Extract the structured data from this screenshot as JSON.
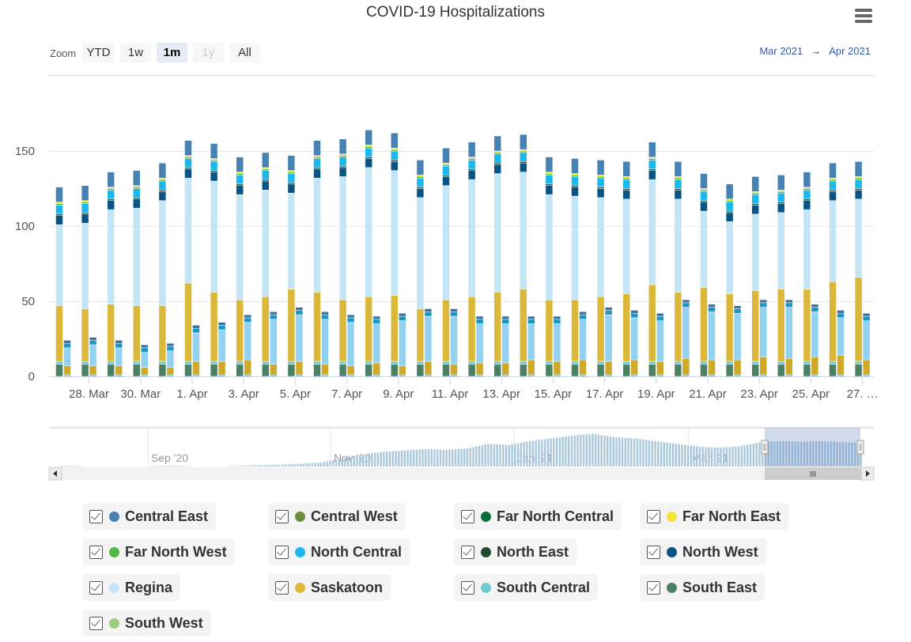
{
  "title": "COVID-19 Hospitalizations",
  "menu_icon": "hamburger-menu-icon",
  "range_selector": {
    "zoom_label": "Zoom",
    "buttons": [
      {
        "label": "YTD",
        "state": "normal"
      },
      {
        "label": "1w",
        "state": "normal"
      },
      {
        "label": "1m",
        "state": "active"
      },
      {
        "label": "1y",
        "state": "disabled"
      },
      {
        "label": "All",
        "state": "normal"
      }
    ],
    "from": "Mar 2021",
    "arrow": "→",
    "to": "Apr 2021"
  },
  "chart_data": {
    "type": "bar",
    "stacking": "normal",
    "stacks_per_category": 2,
    "categories": [
      "27. Mar",
      "28. Mar",
      "29. Mar",
      "30. Mar",
      "31. Mar",
      "1. Apr",
      "2. Apr",
      "3. Apr",
      "4. Apr",
      "5. Apr",
      "6. Apr",
      "7. Apr",
      "8. Apr",
      "9. Apr",
      "10. Apr",
      "11. Apr",
      "12. Apr",
      "13. Apr",
      "14. Apr",
      "15. Apr",
      "16. Apr",
      "17. Apr",
      "18. Apr",
      "19. Apr",
      "20. Apr",
      "21. Apr",
      "22. Apr",
      "23. Apr",
      "24. Apr",
      "25. Apr",
      "26. Apr",
      "27. Apr"
    ],
    "x_tick_labels": [
      "28. Mar",
      "30. Mar",
      "1. Apr",
      "3. Apr",
      "5. Apr",
      "7. Apr",
      "9. Apr",
      "11. Apr",
      "13. Apr",
      "15. Apr",
      "17. Apr",
      "19. Apr",
      "21. Apr",
      "23. Apr",
      "25. Apr",
      "27. …"
    ],
    "y_ticks": [
      0,
      50,
      100,
      150
    ],
    "ylim": [
      0,
      200
    ],
    "grid": true,
    "xlabel": "",
    "ylabel": "",
    "series": [
      {
        "name": "Central East",
        "color": "#4682b4",
        "color2": "#3f6f9c",
        "values": [
          10,
          10,
          10,
          10,
          10,
          10,
          10,
          10,
          10,
          10,
          10,
          10,
          10,
          10,
          10,
          10,
          10,
          10,
          10,
          10,
          10,
          10,
          10,
          10,
          10,
          10,
          10,
          10,
          10,
          10,
          10,
          10
        ],
        "values2": [
          2,
          2,
          2,
          2,
          2,
          2,
          2,
          2,
          2,
          2,
          2,
          2,
          2,
          2,
          2,
          2,
          2,
          2,
          2,
          2,
          2,
          2,
          2,
          2,
          2,
          2,
          2,
          2,
          2,
          2,
          2,
          2
        ]
      },
      {
        "name": "Central West",
        "color": "#6b8e3a",
        "color2": "#5f7f33",
        "values": [
          0,
          0,
          0,
          0,
          0,
          0,
          0,
          0,
          0,
          0,
          0,
          0,
          0,
          0,
          0,
          0,
          0,
          0,
          0,
          0,
          0,
          0,
          0,
          0,
          0,
          0,
          0,
          0,
          0,
          0,
          0,
          0
        ],
        "values2": [
          0,
          0,
          0,
          0,
          0,
          0,
          0,
          0,
          0,
          0,
          0,
          0,
          0,
          0,
          0,
          0,
          0,
          0,
          0,
          0,
          0,
          0,
          0,
          0,
          0,
          0,
          0,
          0,
          0,
          0,
          0,
          0
        ]
      },
      {
        "name": "Far North Central",
        "color": "#0b6e3b",
        "color2": "#0a5f33",
        "values": [
          0,
          0,
          0,
          0,
          0,
          0,
          0,
          0,
          0,
          0,
          0,
          0,
          0,
          0,
          0,
          0,
          0,
          0,
          0,
          0,
          0,
          0,
          0,
          0,
          0,
          0,
          0,
          0,
          0,
          0,
          0,
          0
        ],
        "values2": [
          0,
          0,
          0,
          0,
          0,
          0,
          0,
          0,
          0,
          0,
          0,
          0,
          0,
          0,
          0,
          0,
          0,
          0,
          0,
          0,
          0,
          0,
          0,
          0,
          0,
          0,
          0,
          0,
          0,
          0,
          0,
          0
        ]
      },
      {
        "name": "Far North East",
        "color": "#f5e236",
        "color2": "#d9c72e",
        "values": [
          1,
          1,
          1,
          1,
          1,
          1,
          1,
          1,
          1,
          1,
          1,
          1,
          1,
          1,
          1,
          1,
          1,
          1,
          1,
          1,
          1,
          1,
          1,
          1,
          1,
          1,
          1,
          1,
          1,
          1,
          1,
          1
        ],
        "values2": [
          0,
          0,
          0,
          0,
          0,
          0,
          0,
          0,
          0,
          0,
          0,
          0,
          0,
          0,
          0,
          0,
          0,
          0,
          0,
          0,
          0,
          0,
          0,
          0,
          0,
          0,
          0,
          0,
          0,
          0,
          0,
          0
        ]
      },
      {
        "name": "Far North West",
        "color": "#4fb84a",
        "color2": "#44a13f",
        "values": [
          1,
          1,
          1,
          1,
          1,
          1,
          1,
          1,
          1,
          1,
          1,
          1,
          1,
          1,
          1,
          1,
          1,
          1,
          1,
          1,
          1,
          1,
          1,
          1,
          1,
          1,
          1,
          1,
          1,
          1,
          1,
          1
        ],
        "values2": [
          0,
          0,
          0,
          0,
          0,
          0,
          0,
          0,
          0,
          0,
          0,
          0,
          0,
          0,
          0,
          0,
          0,
          0,
          0,
          0,
          0,
          0,
          0,
          0,
          0,
          0,
          0,
          0,
          0,
          0,
          0,
          0
        ]
      },
      {
        "name": "North Central",
        "color": "#1ab8ec",
        "color2": "#1a96c4",
        "values": [
          6,
          6,
          6,
          6,
          6,
          6,
          6,
          6,
          6,
          6,
          6,
          6,
          6,
          6,
          6,
          6,
          6,
          6,
          6,
          6,
          6,
          6,
          6,
          6,
          6,
          6,
          6,
          6,
          6,
          6,
          6,
          6
        ],
        "values2": [
          3,
          3,
          3,
          3,
          3,
          3,
          3,
          3,
          3,
          3,
          3,
          3,
          3,
          3,
          3,
          3,
          3,
          3,
          3,
          3,
          3,
          3,
          3,
          3,
          3,
          3,
          3,
          3,
          3,
          3,
          3,
          3
        ]
      },
      {
        "name": "North East",
        "color": "#1e4d30",
        "color2": "#0d2a3f",
        "values": [
          1,
          1,
          1,
          1,
          1,
          1,
          1,
          1,
          1,
          1,
          1,
          1,
          1,
          1,
          1,
          1,
          1,
          1,
          1,
          1,
          1,
          1,
          1,
          1,
          1,
          1,
          1,
          1,
          1,
          1,
          1,
          1
        ],
        "values2": [
          0,
          0,
          0,
          0,
          0,
          0,
          0,
          0,
          0,
          0,
          0,
          0,
          0,
          0,
          0,
          0,
          0,
          0,
          0,
          0,
          0,
          0,
          0,
          0,
          0,
          0,
          0,
          0,
          0,
          0,
          0,
          0
        ]
      },
      {
        "name": "North West",
        "color": "#0a5485",
        "color2": "#0a4a75",
        "values": [
          6,
          6,
          6,
          6,
          6,
          6,
          6,
          6,
          6,
          6,
          6,
          6,
          6,
          6,
          6,
          6,
          6,
          6,
          6,
          6,
          6,
          6,
          6,
          6,
          6,
          6,
          6,
          6,
          6,
          6,
          6,
          6
        ],
        "values2": [
          0,
          0,
          0,
          0,
          0,
          0,
          0,
          0,
          0,
          0,
          0,
          0,
          0,
          0,
          0,
          0,
          0,
          0,
          0,
          0,
          0,
          0,
          0,
          0,
          0,
          0,
          0,
          0,
          0,
          0,
          0,
          0
        ]
      },
      {
        "name": "Regina",
        "color": "#c3e5f6",
        "color2": "#92d1ef",
        "values": [
          54,
          57,
          63,
          65,
          70,
          70,
          74,
          70,
          71,
          64,
          76,
          82,
          86,
          83,
          74,
          76,
          78,
          79,
          78,
          70,
          69,
          66,
          63,
          70,
          62,
          51,
          48,
          51,
          51,
          53,
          54,
          52
        ],
        "values2": [
          12,
          14,
          12,
          10,
          11,
          19,
          21,
          25,
          30,
          31,
          30,
          29,
          26,
          30,
          30,
          32,
          26,
          26,
          24,
          25,
          27,
          31,
          28,
          27,
          34,
          32,
          31,
          33,
          34,
          30,
          25,
          26
        ]
      },
      {
        "name": "Saskatoon",
        "color": "#dcb83a",
        "color2": "#cfa92a",
        "values": [
          37,
          35,
          38,
          37,
          37,
          52,
          46,
          41,
          43,
          48,
          46,
          41,
          43,
          44,
          35,
          41,
          43,
          46,
          48,
          41,
          41,
          43,
          45,
          51,
          46,
          49,
          45,
          47,
          48,
          48,
          53,
          56
        ],
        "values2": [
          6,
          6,
          6,
          5,
          5,
          9,
          9,
          10,
          7,
          9,
          7,
          6,
          8,
          6,
          9,
          7,
          8,
          8,
          10,
          9,
          10,
          9,
          10,
          9,
          11,
          10,
          10,
          12,
          11,
          12,
          13,
          10
        ]
      },
      {
        "name": "South Central",
        "color": "#6fc9d0",
        "color2": "#5bc0c9",
        "values": [
          2,
          2,
          2,
          2,
          2,
          2,
          2,
          2,
          2,
          2,
          2,
          2,
          2,
          2,
          2,
          2,
          2,
          2,
          2,
          2,
          2,
          2,
          2,
          2,
          2,
          2,
          2,
          2,
          2,
          2,
          2,
          2
        ],
        "values2": [
          1,
          1,
          1,
          1,
          1,
          1,
          1,
          1,
          1,
          1,
          1,
          1,
          1,
          1,
          1,
          1,
          1,
          1,
          1,
          1,
          1,
          1,
          1,
          1,
          1,
          1,
          1,
          1,
          1,
          1,
          1,
          1
        ]
      },
      {
        "name": "South East",
        "color": "#4b8062",
        "color2": "#43735a",
        "values": [
          8,
          8,
          8,
          8,
          8,
          8,
          8,
          8,
          8,
          8,
          8,
          8,
          8,
          8,
          8,
          8,
          8,
          8,
          8,
          8,
          8,
          8,
          8,
          8,
          8,
          8,
          8,
          8,
          8,
          8,
          8,
          8
        ],
        "values2": [
          0,
          0,
          0,
          0,
          0,
          0,
          0,
          0,
          0,
          0,
          0,
          0,
          0,
          0,
          0,
          0,
          0,
          0,
          0,
          0,
          0,
          0,
          0,
          0,
          0,
          0,
          0,
          0,
          0,
          0,
          0,
          0
        ]
      },
      {
        "name": "South West",
        "color": "#9ccc7e",
        "color2": "#8cbc6e",
        "values": [
          0,
          0,
          0,
          0,
          0,
          0,
          0,
          0,
          0,
          0,
          0,
          0,
          0,
          0,
          0,
          0,
          0,
          0,
          0,
          0,
          0,
          0,
          0,
          0,
          0,
          0,
          0,
          0,
          0,
          0,
          0,
          0
        ],
        "values2": [
          0,
          0,
          0,
          0,
          0,
          0,
          0,
          0,
          0,
          0,
          0,
          0,
          0,
          0,
          0,
          0,
          0,
          0,
          0,
          0,
          0,
          0,
          0,
          0,
          0,
          0,
          0,
          0,
          0,
          0,
          0,
          0
        ]
      }
    ]
  },
  "navigator": {
    "labels": [
      "Sep '20",
      "Nov '20",
      "Jan '21",
      "Mar '21"
    ],
    "weekly_values": [
      2,
      4,
      2,
      0,
      0,
      4,
      6,
      2,
      2,
      4,
      10,
      14,
      20,
      30,
      60,
      90,
      110,
      120,
      130,
      125,
      135,
      170,
      160,
      190,
      210,
      230,
      245,
      220,
      210,
      190,
      170,
      150,
      140,
      150,
      180,
      190,
      185,
      190,
      180
    ],
    "series_color": "#a9c8dc",
    "selection_color": "#6685c2",
    "scrollbar_grip": "III"
  },
  "legend": {
    "checked_icon": "checkbox-checked-icon",
    "items": [
      {
        "label": "Central East",
        "color": "#4682b4",
        "checked": true
      },
      {
        "label": "Central West",
        "color": "#6b8e3a",
        "checked": true
      },
      {
        "label": "Far North Central",
        "color": "#0b6e3b",
        "checked": true
      },
      {
        "label": "Far North East",
        "color": "#f5e236",
        "checked": true
      },
      {
        "label": "Far North West",
        "color": "#4fb84a",
        "checked": true
      },
      {
        "label": "North Central",
        "color": "#1ab8ec",
        "checked": true
      },
      {
        "label": "North East",
        "color": "#1e4d30",
        "checked": true
      },
      {
        "label": "North West",
        "color": "#0a5485",
        "checked": true
      },
      {
        "label": "Regina",
        "color": "#c3e5f6",
        "checked": true
      },
      {
        "label": "Saskatoon",
        "color": "#dcb83a",
        "checked": true
      },
      {
        "label": "South Central",
        "color": "#6fc9d0",
        "checked": true
      },
      {
        "label": "South East",
        "color": "#4b8062",
        "checked": true
      },
      {
        "label": "South West",
        "color": "#9ccc7e",
        "checked": true
      }
    ]
  }
}
